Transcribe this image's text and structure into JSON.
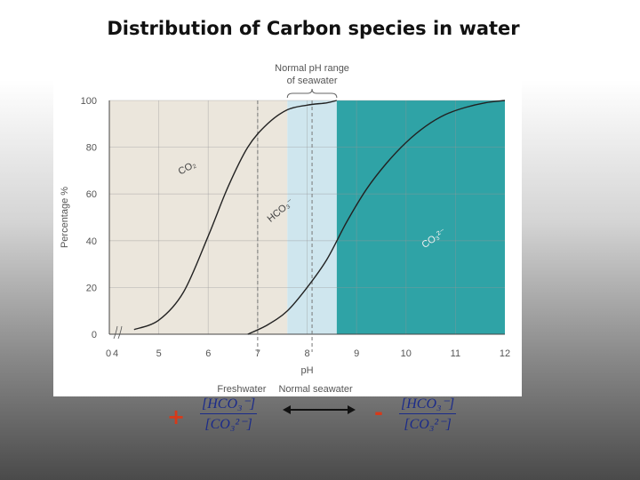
{
  "title": "Distribution of Carbon species in water",
  "chart_data": {
    "type": "line",
    "xlabel": "pH",
    "ylabel": "Percentage %",
    "xlim": [
      4,
      12
    ],
    "ylim": [
      0,
      100
    ],
    "x_ticks": [
      "0",
      "4",
      "5",
      "6",
      "7",
      "8",
      "9",
      "10",
      "11",
      "12"
    ],
    "y_ticks": [
      "0",
      "20",
      "40",
      "60",
      "80",
      "100"
    ],
    "grid": true,
    "regions": [
      {
        "from": 4,
        "to": 7.6,
        "color": "#ebe6dc"
      },
      {
        "from": 7.6,
        "to": 8.6,
        "color": "#cfe6ee"
      },
      {
        "from": 8.6,
        "to": 12,
        "color": "#2fa3a6"
      }
    ],
    "reference_lines": [
      {
        "x": 7,
        "label": "Freshwater"
      },
      {
        "x": 8.1,
        "label": "Normal seawater"
      }
    ],
    "range_annotation": {
      "text_line1": "Normal pH range",
      "text_line2": "of seawater",
      "from": 7.6,
      "to": 8.6
    },
    "curves": [
      {
        "id": "cumulative_co2_hco3",
        "x": [
          4.5,
          5.0,
          5.5,
          6.0,
          6.4,
          6.8,
          7.2,
          7.6,
          8.0,
          8.4,
          8.6
        ],
        "y": [
          2,
          6,
          18,
          42,
          63,
          80,
          90,
          96,
          98,
          99,
          100
        ]
      },
      {
        "id": "cumulative_co3",
        "x": [
          6.8,
          7.2,
          7.6,
          8.0,
          8.4,
          8.8,
          9.2,
          9.6,
          10.0,
          10.4,
          10.8,
          11.2,
          11.6,
          12.0
        ],
        "y": [
          0,
          4,
          10,
          20,
          32,
          48,
          62,
          73,
          82,
          89,
          94,
          97,
          99,
          100
        ]
      }
    ],
    "species_labels": [
      {
        "text": "CO₂",
        "x": 5.6,
        "y": 70
      },
      {
        "text": "HCO₃⁻",
        "x": 7.5,
        "y": 52
      },
      {
        "text": "CO₃²⁻",
        "x": 10.6,
        "y": 40
      }
    ]
  },
  "equation": {
    "left_sign": "+",
    "right_sign": "-",
    "left_numerator": "[HCO₃⁻]",
    "left_denominator": "[CO₃²⁻]",
    "right_numerator": "[HCO₃⁻]",
    "right_denominator": "[CO₃²⁻]"
  },
  "colors": {
    "accent_sign": "#d63a1a",
    "formula_text": "#1a2a8a",
    "teal_region": "#2fa3a6"
  }
}
